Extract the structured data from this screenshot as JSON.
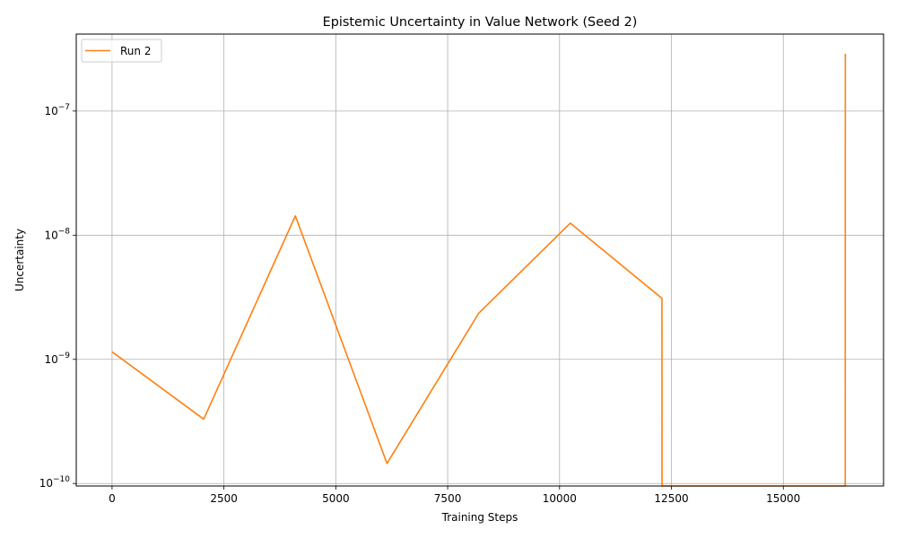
{
  "chart_data": {
    "type": "line",
    "title": "Epistemic Uncertainty in Value Network (Seed 2)",
    "xlabel": "Training Steps",
    "ylabel": "Uncertainty",
    "xlim": [
      -800,
      17240
    ],
    "ylim_log10": [
      -10.02,
      -6.38
    ],
    "yscale": "log",
    "grid": true,
    "legend_position": "top-left",
    "x_ticks": [
      0,
      2500,
      5000,
      7500,
      10000,
      12500,
      15000
    ],
    "x_tick_labels": [
      "0",
      "2500",
      "5000",
      "7500",
      "10000",
      "12500",
      "15000"
    ],
    "y_tick_exponents": [
      -10,
      -9,
      -8,
      -7
    ],
    "y_tick_labels": [
      "10",
      "10",
      "10",
      "10"
    ],
    "y_tick_superscripts": [
      "−10",
      "−9",
      "−8",
      "−7"
    ],
    "series": [
      {
        "name": "Run 2",
        "color": "#ff7f0e",
        "x": [
          0,
          2048,
          4096,
          6144,
          8192,
          10240,
          12288,
          12290,
          16384,
          16386
        ],
        "y": [
          1.15e-09,
          3.3e-10,
          1.43e-08,
          1.45e-10,
          2.35e-09,
          1.25e-08,
          3.1e-09,
          1e-11,
          1e-11,
          2.9e-07
        ]
      }
    ]
  }
}
